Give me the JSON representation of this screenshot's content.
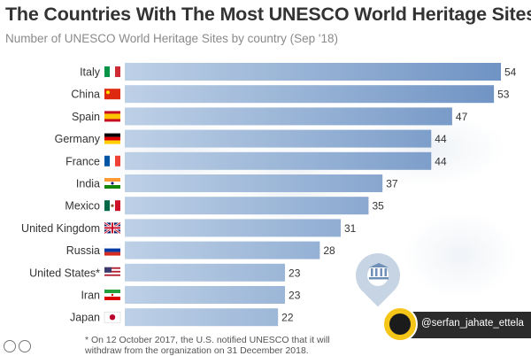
{
  "title": "The Countries With The Most UNESCO World Heritage Sites",
  "subtitle": "Number of UNESCO World Heritage Sites by country (Sep '18)",
  "footnote": "* On 12 October 2017, the U.S. notified UNESCO that it will withdraw from the organization on 31 December 2018.",
  "social_handle": "@serfan_jahate_ettela",
  "icons": {
    "map": "world-map-icon",
    "unesco": "unesco-temple-icon",
    "creative_commons": "cc-icon",
    "channel_logo": "channel-logo-icon"
  },
  "colors": {
    "bar_left": "#bdd0e6",
    "bar_right": "#6f93c4",
    "title": "#333333",
    "subtitle": "#8a8a8a"
  },
  "chart_data": {
    "type": "bar",
    "orientation": "horizontal",
    "title": "The Countries With The Most UNESCO World Heritage Sites",
    "subtitle": "Number of UNESCO World Heritage Sites by country (Sep '18)",
    "categories": [
      "Italy",
      "China",
      "Spain",
      "Germany",
      "France",
      "India",
      "Mexico",
      "United Kingdom",
      "Russia",
      "United States*",
      "Iran",
      "Japan"
    ],
    "values": [
      54,
      53,
      47,
      44,
      44,
      37,
      35,
      31,
      28,
      23,
      23,
      22
    ],
    "flags": [
      "italy-flag-icon",
      "china-flag-icon",
      "spain-flag-icon",
      "germany-flag-icon",
      "france-flag-icon",
      "india-flag-icon",
      "mexico-flag-icon",
      "uk-flag-icon",
      "russia-flag-icon",
      "usa-flag-icon",
      "iran-flag-icon",
      "japan-flag-icon"
    ],
    "xlim": [
      0,
      54
    ],
    "grid": false,
    "legend": "none"
  }
}
